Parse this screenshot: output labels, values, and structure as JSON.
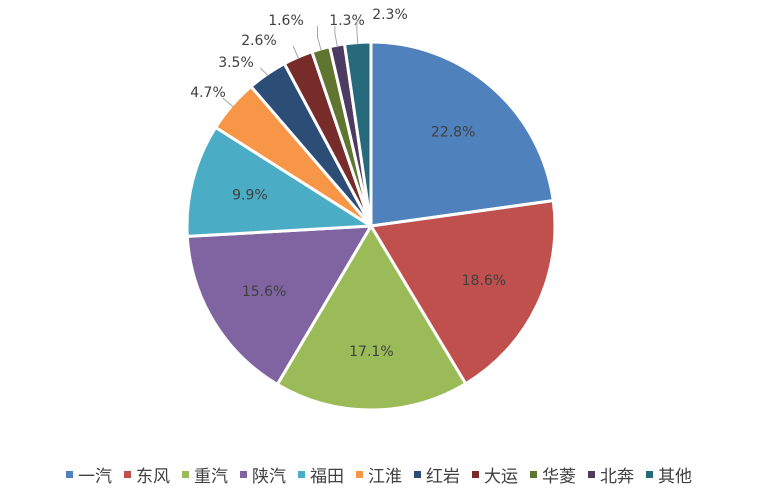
{
  "chart_data": {
    "type": "pie",
    "title": "",
    "categories": [
      "一汽",
      "东风",
      "重汽",
      "陕汽",
      "福田",
      "江淮",
      "红岩",
      "大运",
      "华菱",
      "北奔",
      "其他"
    ],
    "values": [
      22.8,
      18.6,
      17.1,
      15.6,
      9.9,
      4.7,
      3.5,
      2.6,
      1.6,
      1.3,
      2.3
    ],
    "value_labels": [
      "22.8%",
      "18.6%",
      "17.1%",
      "15.6%",
      "9.9%",
      "4.7%",
      "3.5%",
      "2.6%",
      "1.6%",
      "1.3%",
      "2.3%"
    ],
    "colors": [
      "#4f81bd",
      "#c0504d",
      "#9bbb59",
      "#8064a2",
      "#4bacc6",
      "#f79646",
      "#2c4d75",
      "#772c2a",
      "#5f7530",
      "#4d3b62",
      "#276a7c"
    ],
    "start_angle_deg": 0,
    "direction": "clockwise",
    "legend_position": "bottom"
  }
}
